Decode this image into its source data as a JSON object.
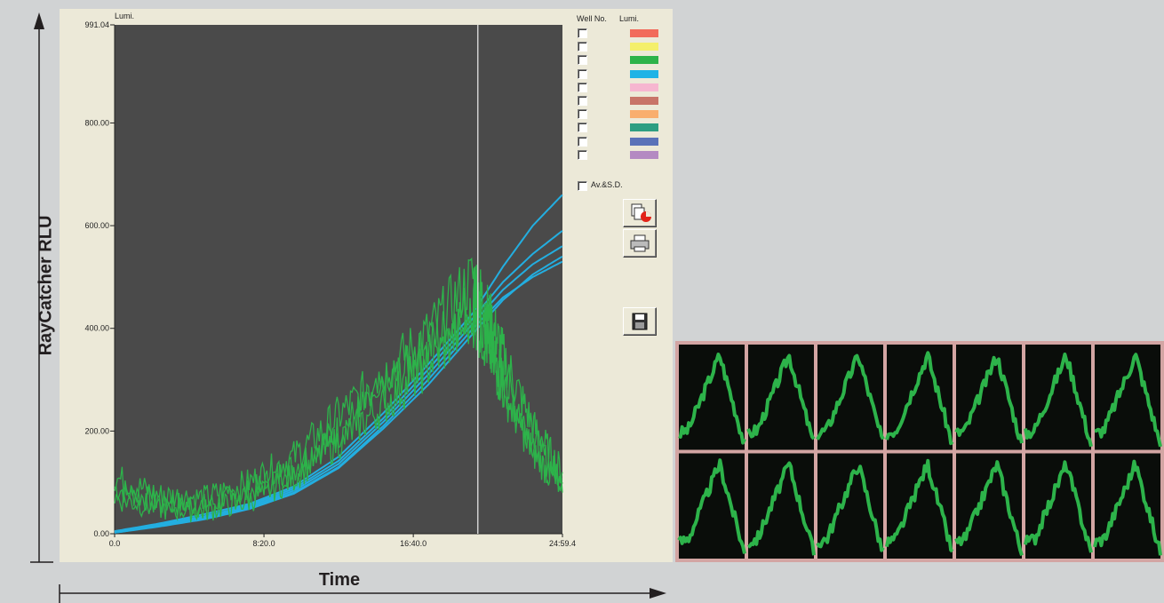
{
  "outer": {
    "ylabel": "RayCatcher RLU",
    "xlabel": "Time"
  },
  "chart_data": [
    {
      "type": "line",
      "ylabel": "Lumi.",
      "xlabel": "",
      "xlim": [
        0,
        1499.4
      ],
      "ylim": [
        0,
        991.04
      ],
      "x_tick_labels": [
        "0.0",
        "8:20.0",
        "16:40.0",
        "24:59.4"
      ],
      "x_tick_values": [
        0,
        500,
        1000,
        1499.4
      ],
      "y_tick_labels": [
        "0.00",
        "200.00",
        "400.00",
        "600.00",
        "800.00",
        "991.04"
      ],
      "y_tick_values": [
        0,
        200,
        400,
        600,
        800,
        991.04
      ],
      "cursor_x": 1216,
      "background": "#4a4a4a",
      "series": [
        {
          "color": "#23aee0",
          "x": [
            0,
            150,
            300,
            450,
            600,
            750,
            900,
            1050,
            1200,
            1300,
            1400,
            1499
          ],
          "values": [
            2,
            15,
            30,
            50,
            80,
            130,
            210,
            300,
            400,
            460,
            500,
            530
          ]
        },
        {
          "color": "#23aee0",
          "x": [
            0,
            150,
            300,
            450,
            600,
            750,
            900,
            1050,
            1200,
            1300,
            1400,
            1499
          ],
          "values": [
            5,
            20,
            38,
            58,
            92,
            150,
            235,
            330,
            430,
            520,
            600,
            660
          ]
        },
        {
          "color": "#23aee0",
          "x": [
            0,
            150,
            300,
            450,
            600,
            750,
            900,
            1050,
            1200,
            1300,
            1400,
            1499
          ],
          "values": [
            3,
            18,
            34,
            55,
            88,
            142,
            225,
            320,
            420,
            490,
            545,
            590
          ]
        },
        {
          "color": "#23aee0",
          "x": [
            0,
            150,
            300,
            450,
            600,
            750,
            900,
            1050,
            1200,
            1300,
            1400,
            1499
          ],
          "values": [
            2,
            14,
            28,
            48,
            78,
            128,
            205,
            290,
            390,
            455,
            505,
            540
          ]
        },
        {
          "color": "#23aee0",
          "x": [
            0,
            150,
            300,
            450,
            600,
            750,
            900,
            1050,
            1200,
            1300,
            1400,
            1499
          ],
          "values": [
            3,
            16,
            31,
            52,
            84,
            136,
            218,
            310,
            410,
            475,
            525,
            560
          ]
        },
        {
          "color": "#2db34a",
          "x": [
            0,
            150,
            300,
            450,
            600,
            750,
            900,
            1050,
            1200,
            1250,
            1300,
            1400,
            1499
          ],
          "values": [
            90,
            60,
            55,
            80,
            130,
            200,
            280,
            360,
            450,
            380,
            300,
            180,
            100
          ]
        },
        {
          "color": "#2db34a",
          "x": [
            0,
            150,
            300,
            450,
            600,
            750,
            900,
            1050,
            1200,
            1250,
            1300,
            1400,
            1499
          ],
          "values": [
            110,
            75,
            70,
            100,
            150,
            230,
            310,
            390,
            500,
            430,
            350,
            210,
            120
          ]
        },
        {
          "color": "#2db34a",
          "x": [
            0,
            150,
            300,
            450,
            600,
            750,
            900,
            1050,
            1200,
            1250,
            1300,
            1400,
            1499
          ],
          "values": [
            70,
            50,
            45,
            65,
            110,
            180,
            250,
            330,
            420,
            360,
            280,
            160,
            80
          ]
        }
      ]
    }
  ],
  "legend": {
    "header_well": "Well No.",
    "header_lumi": "Lumi.",
    "swatch_colors": [
      "#f26b5b",
      "#f4ef6a",
      "#2db34a",
      "#1fb3e6",
      "#f6b6d0",
      "#c87468",
      "#f9ae6e",
      "#2e9e82",
      "#5a72b8",
      "#b48ac2"
    ]
  },
  "avsd_label": "Av.&S.D.",
  "icons": [
    "copy-chart-icon",
    "print-icon",
    "save-icon"
  ],
  "heatmap": {
    "rows": 2,
    "cols": 7,
    "background": "#0a0d0a",
    "trace_color": "#2db34a",
    "grid_color": "#d3a5a3"
  }
}
